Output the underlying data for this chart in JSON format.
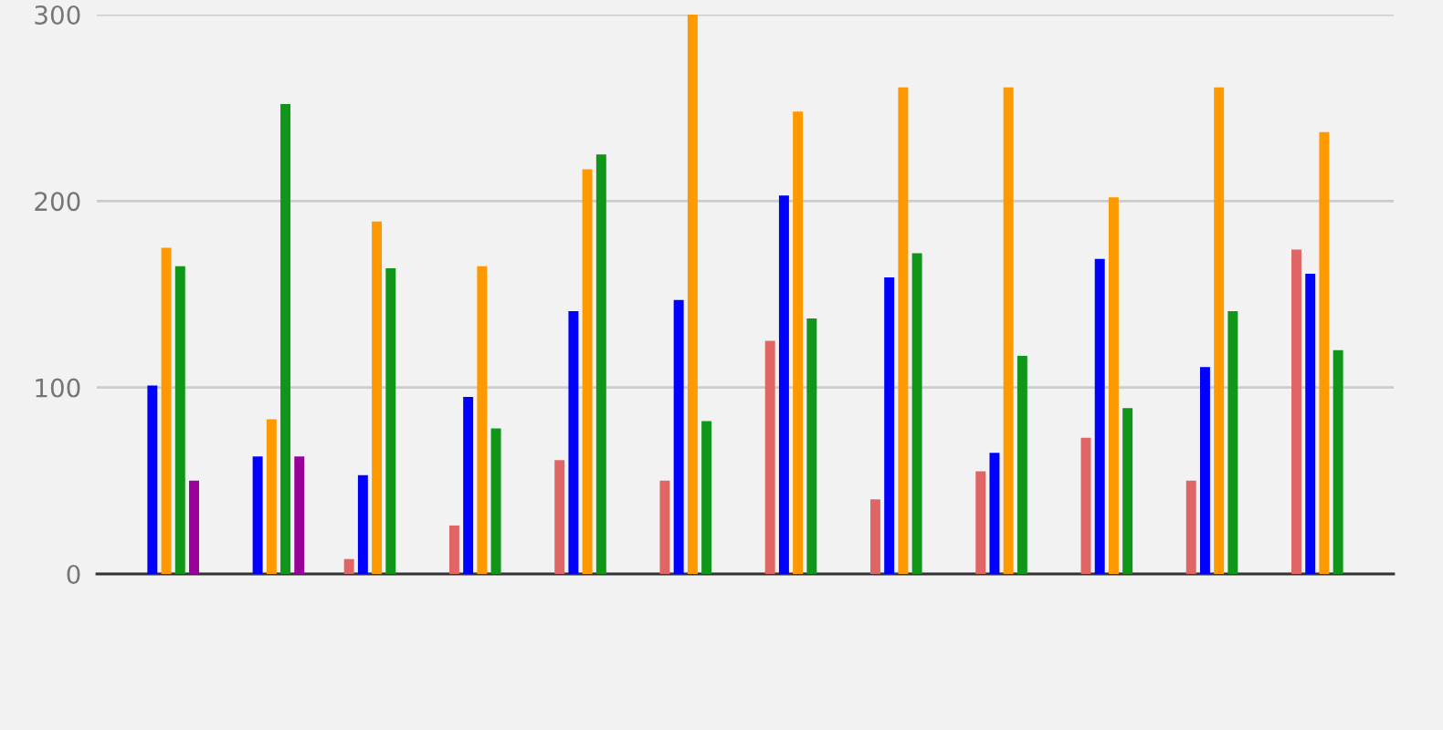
{
  "chart_data": {
    "type": "bar",
    "categories": [
      null,
      null,
      null,
      null,
      null,
      null,
      null,
      null,
      null,
      null,
      null,
      null
    ],
    "series": [
      {
        "color": "#e06666",
        "values": [
          null,
          null,
          8,
          26,
          61,
          50,
          125,
          40,
          55,
          73,
          50,
          174
        ]
      },
      {
        "color": "#0000ff",
        "values": [
          101,
          63,
          53,
          95,
          141,
          147,
          203,
          159,
          65,
          169,
          111,
          161
        ]
      },
      {
        "color": "#ff9900",
        "values": [
          175,
          83,
          189,
          165,
          217,
          300,
          248,
          261,
          261,
          202,
          261,
          237
        ]
      },
      {
        "color": "#109618",
        "values": [
          165,
          252,
          164,
          78,
          225,
          82,
          137,
          172,
          117,
          89,
          141,
          120
        ]
      },
      {
        "color": "#990099",
        "values": [
          50,
          63,
          null,
          null,
          null,
          null,
          null,
          null,
          null,
          null,
          null,
          null
        ]
      }
    ],
    "ylim": [
      0,
      300
    ],
    "yticks": [
      0,
      100,
      200,
      300
    ],
    "grid": "y",
    "tick_labels": "y"
  }
}
